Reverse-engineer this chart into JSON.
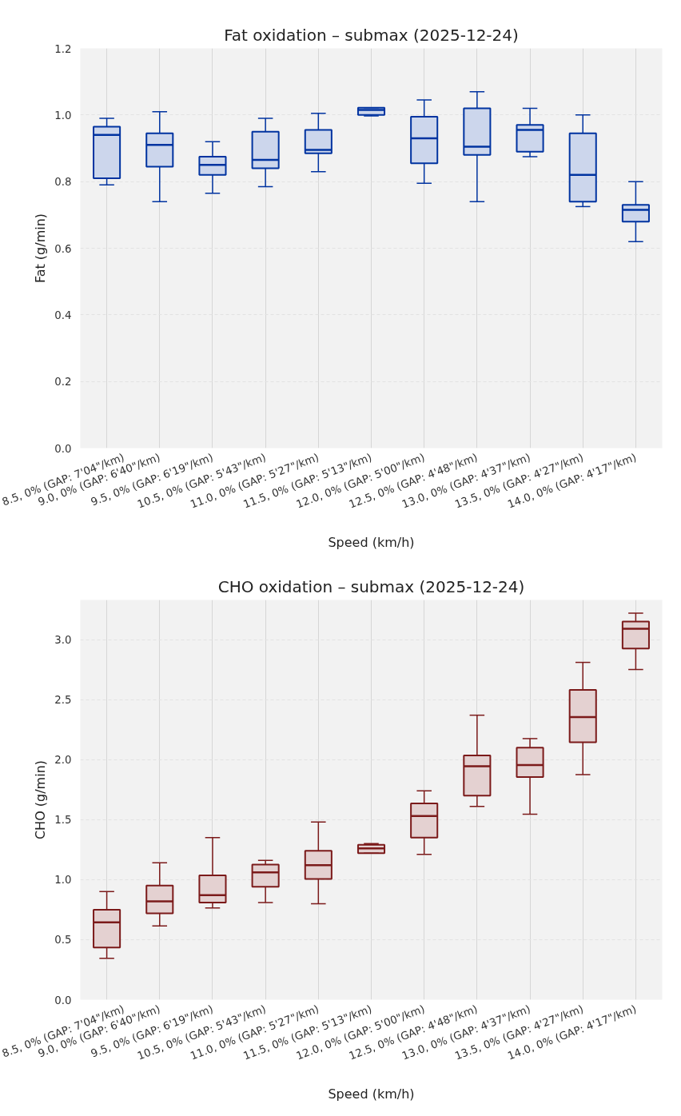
{
  "chart_data": [
    {
      "type": "box",
      "title": "Fat oxidation – submax (2025-12-24)",
      "xlabel": "Speed (km/h)",
      "ylabel": "Fat (g/min)",
      "categories": [
        "8.5, 0% (GAP: 7'04\"/km)",
        "9.0, 0% (GAP: 6'40\"/km)",
        "9.5, 0% (GAP: 6'19\"/km)",
        "10.5, 0% (GAP: 5'43\"/km)",
        "11.0, 0% (GAP: 5'27\"/km)",
        "11.5, 0% (GAP: 5'13\"/km)",
        "12.0, 0% (GAP: 5'00\"/km)",
        "12.5, 0% (GAP: 4'48\"/km)",
        "13.0, 0% (GAP: 4'37\"/km)",
        "13.5, 0% (GAP: 4'27\"/km)",
        "14.0, 0% (GAP: 4'17\"/km)"
      ],
      "series": [
        {
          "color": "#0033a0",
          "boxes": [
            {
              "low": 0.79,
              "q1": 0.81,
              "median": 0.94,
              "q3": 0.965,
              "high": 0.99
            },
            {
              "low": 0.74,
              "q1": 0.845,
              "median": 0.91,
              "q3": 0.945,
              "high": 1.01
            },
            {
              "low": 0.765,
              "q1": 0.82,
              "median": 0.85,
              "q3": 0.875,
              "high": 0.92
            },
            {
              "low": 0.785,
              "q1": 0.84,
              "median": 0.865,
              "q3": 0.95,
              "high": 0.99
            },
            {
              "low": 0.83,
              "q1": 0.885,
              "median": 0.895,
              "q3": 0.955,
              "high": 1.005
            },
            {
              "low": 0.997,
              "q1": 1.0,
              "median": 1.015,
              "q3": 1.022,
              "high": 1.022
            },
            {
              "low": 0.795,
              "q1": 0.855,
              "median": 0.93,
              "q3": 0.995,
              "high": 1.045
            },
            {
              "low": 0.74,
              "q1": 0.88,
              "median": 0.905,
              "q3": 1.02,
              "high": 1.07
            },
            {
              "low": 0.875,
              "q1": 0.89,
              "median": 0.955,
              "q3": 0.97,
              "high": 1.02
            },
            {
              "low": 0.725,
              "q1": 0.74,
              "median": 0.82,
              "q3": 0.945,
              "high": 1.0
            },
            {
              "low": 0.62,
              "q1": 0.68,
              "median": 0.715,
              "q3": 0.73,
              "high": 0.8
            }
          ]
        }
      ],
      "ylim": [
        0,
        1.2
      ],
      "yticks": [
        {
          "value": 0,
          "label": "0.0"
        },
        {
          "value": 0.2,
          "label": "0.2"
        },
        {
          "value": 0.4,
          "label": "0.4"
        },
        {
          "value": 0.6,
          "label": "0.6"
        },
        {
          "value": 0.8,
          "label": "0.8"
        },
        {
          "value": 1.0,
          "label": "1.0"
        },
        {
          "value": 1.2,
          "label": "1.2"
        }
      ],
      "grid": true
    },
    {
      "type": "box",
      "title": "CHO oxidation – submax (2025-12-24)",
      "xlabel": "Speed (km/h)",
      "ylabel": "CHO (g/min)",
      "categories": [
        "8.5, 0% (GAP: 7'04\"/km)",
        "9.0, 0% (GAP: 6'40\"/km)",
        "9.5, 0% (GAP: 6'19\"/km)",
        "10.5, 0% (GAP: 5'43\"/km)",
        "11.0, 0% (GAP: 5'27\"/km)",
        "11.5, 0% (GAP: 5'13\"/km)",
        "12.0, 0% (GAP: 5'00\"/km)",
        "12.5, 0% (GAP: 4'48\"/km)",
        "13.0, 0% (GAP: 4'37\"/km)",
        "13.5, 0% (GAP: 4'27\"/km)",
        "14.0, 0% (GAP: 4'17\"/km)"
      ],
      "series": [
        {
          "color": "#7b1a1a",
          "boxes": [
            {
              "low": 0.345,
              "q1": 0.435,
              "median": 0.645,
              "q3": 0.75,
              "high": 0.9
            },
            {
              "low": 0.615,
              "q1": 0.72,
              "median": 0.82,
              "q3": 0.95,
              "high": 1.14
            },
            {
              "low": 0.765,
              "q1": 0.81,
              "median": 0.87,
              "q3": 1.035,
              "high": 1.35
            },
            {
              "low": 0.81,
              "q1": 0.94,
              "median": 1.06,
              "q3": 1.125,
              "high": 1.16
            },
            {
              "low": 0.8,
              "q1": 1.005,
              "median": 1.12,
              "q3": 1.24,
              "high": 1.48
            },
            {
              "low": 1.22,
              "q1": 1.22,
              "median": 1.26,
              "q3": 1.29,
              "high": 1.3
            },
            {
              "low": 1.21,
              "q1": 1.35,
              "median": 1.53,
              "q3": 1.635,
              "high": 1.74
            },
            {
              "low": 1.61,
              "q1": 1.7,
              "median": 1.945,
              "q3": 2.035,
              "high": 2.37
            },
            {
              "low": 1.545,
              "q1": 1.855,
              "median": 1.955,
              "q3": 2.1,
              "high": 2.175
            },
            {
              "low": 1.875,
              "q1": 2.145,
              "median": 2.355,
              "q3": 2.58,
              "high": 2.81
            },
            {
              "low": 2.75,
              "q1": 2.925,
              "median": 3.09,
              "q3": 3.15,
              "high": 3.22
            }
          ]
        }
      ],
      "ylim": [
        0,
        3.33
      ],
      "yticks": [
        {
          "value": 0,
          "label": "0.0"
        },
        {
          "value": 0.5,
          "label": "0.5"
        },
        {
          "value": 1.0,
          "label": "1.0"
        },
        {
          "value": 1.5,
          "label": "1.5"
        },
        {
          "value": 2.0,
          "label": "2.0"
        },
        {
          "value": 2.5,
          "label": "2.5"
        },
        {
          "value": 3.0,
          "label": "3.0"
        }
      ],
      "grid": true
    }
  ]
}
